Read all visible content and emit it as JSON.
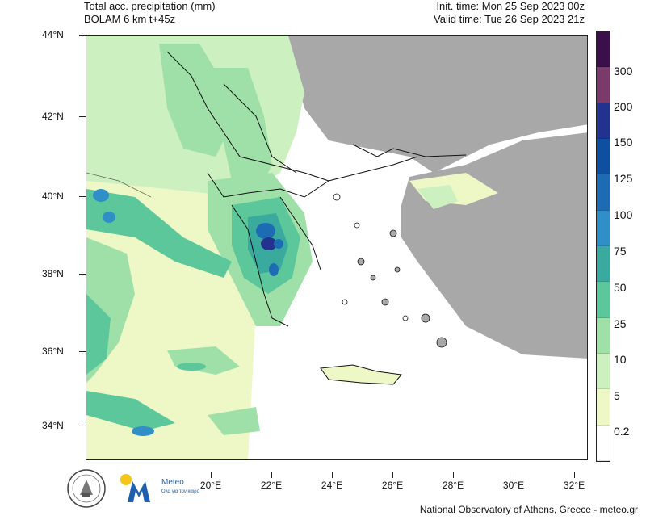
{
  "title": {
    "line1": "Total acc. precipitation (mm)",
    "line2": "BOLAM 6 km t+45z",
    "init": "Init. time: Mon 25 Sep 2023 00z",
    "valid": "Valid time: Tue 26 Sep 2023 21z"
  },
  "lat_labels": [
    "44°N",
    "42°N",
    "40°N",
    "38°N",
    "36°N",
    "34°N"
  ],
  "lon_labels": [
    "20°E",
    "22°E",
    "24°E",
    "26°E",
    "28°E",
    "30°E",
    "32°E"
  ],
  "colorbar": {
    "labels": [
      "300",
      "200",
      "150",
      "125",
      "100",
      "75",
      "50",
      "25",
      "10",
      "5",
      "0.2"
    ],
    "colors": [
      "#3b0f4a",
      "#7a3a6a",
      "#23318f",
      "#0e4fa0",
      "#1d6cb3",
      "#2f8fc6",
      "#3aaa9f",
      "#5bc79b",
      "#9fe0a9",
      "#cdf0c0",
      "#eef7c6",
      "#ffffff"
    ]
  },
  "colors": {
    "land": "#a8a8a8",
    "sea": "#ffffff",
    "light_rain": "#eef7c6"
  },
  "logos": {
    "meteo_name": "Meteo",
    "meteo_sub": "Όλα για τον καιρό"
  },
  "footer": "National Observatory of Athens, Greece - meteo.gr"
}
